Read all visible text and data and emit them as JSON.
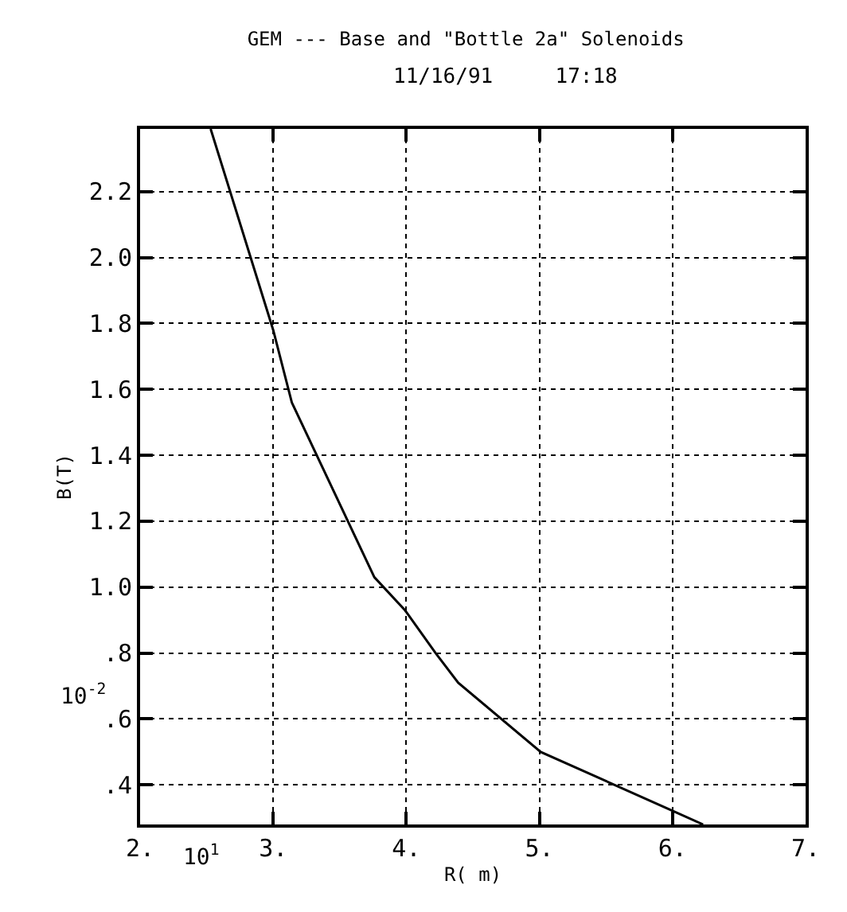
{
  "chart_data": {
    "type": "line",
    "title": "GEM --- Base and \"Bottle 2a\" Solenoids",
    "subtitle": "11/16/91     17:18",
    "xlabel": "R( m)",
    "ylabel": "B(T)",
    "x": [
      2.53,
      3.0,
      3.14,
      3.76,
      3.99,
      4.22,
      4.39,
      5.01,
      6.23
    ],
    "series": [
      {
        "color": "#000000",
        "values": [
          2.39,
          1.78,
          1.56,
          1.03,
          0.93,
          0.8,
          0.71,
          0.5,
          0.28
        ]
      }
    ],
    "xlim": [
      2,
      7
    ],
    "ylim": [
      0.28,
      2.39
    ],
    "xticks": [
      {
        "value": 2,
        "label": "2."
      },
      {
        "value": 3,
        "label": "3."
      },
      {
        "value": 4,
        "label": "4."
      },
      {
        "value": 5,
        "label": "5."
      },
      {
        "value": 6,
        "label": "6."
      },
      {
        "value": 7,
        "label": "7."
      }
    ],
    "yticks": [
      {
        "value": 0.4,
        "label": ".4"
      },
      {
        "value": 0.6,
        "label": ".6"
      },
      {
        "value": 0.8,
        "label": ".8"
      },
      {
        "value": 1.0,
        "label": "1.0"
      },
      {
        "value": 1.2,
        "label": "1.2"
      },
      {
        "value": 1.4,
        "label": "1.4"
      },
      {
        "value": 1.6,
        "label": "1.6"
      },
      {
        "value": 1.8,
        "label": "1.8"
      },
      {
        "value": 2.0,
        "label": "2.0"
      },
      {
        "value": 2.2,
        "label": "2.2"
      }
    ],
    "annotations": [
      "10$^{1}$",
      "10$^{-2}$"
    ],
    "grid": true,
    "marker": "none",
    "line_style": "solid"
  }
}
